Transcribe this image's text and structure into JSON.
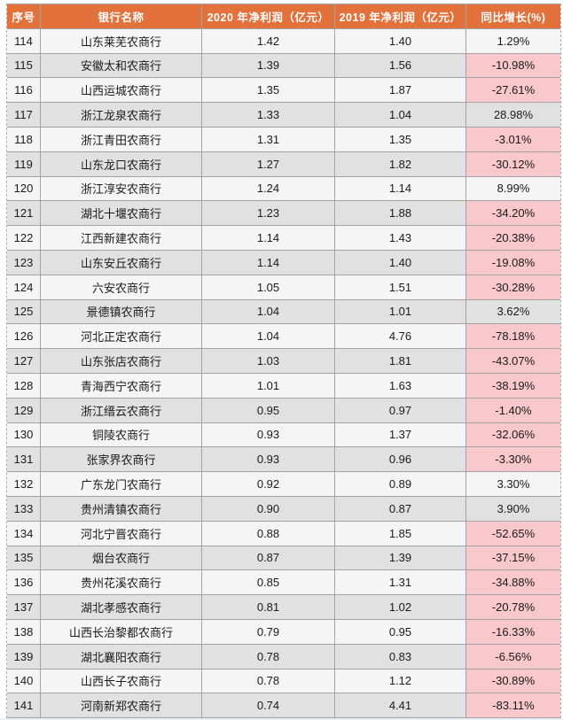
{
  "chart_data": {
    "type": "table",
    "columns": [
      "序号",
      "银行名称",
      "2020 年净利润（亿元）",
      "2019 年净利润（亿元）",
      "同比增长(%)"
    ],
    "rows": [
      {
        "index": "114",
        "name": "山东莱芜农商行",
        "profit_2020": "1.42",
        "profit_2019": "1.40",
        "growth": "1.29%",
        "negative": false
      },
      {
        "index": "115",
        "name": "安徽太和农商行",
        "profit_2020": "1.39",
        "profit_2019": "1.56",
        "growth": "-10.98%",
        "negative": true
      },
      {
        "index": "116",
        "name": "山西运城农商行",
        "profit_2020": "1.35",
        "profit_2019": "1.87",
        "growth": "-27.61%",
        "negative": true
      },
      {
        "index": "117",
        "name": "浙江龙泉农商行",
        "profit_2020": "1.33",
        "profit_2019": "1.04",
        "growth": "28.98%",
        "negative": false
      },
      {
        "index": "118",
        "name": "浙江青田农商行",
        "profit_2020": "1.31",
        "profit_2019": "1.35",
        "growth": "-3.01%",
        "negative": true
      },
      {
        "index": "119",
        "name": "山东龙口农商行",
        "profit_2020": "1.27",
        "profit_2019": "1.82",
        "growth": "-30.12%",
        "negative": true
      },
      {
        "index": "120",
        "name": "浙江淳安农商行",
        "profit_2020": "1.24",
        "profit_2019": "1.14",
        "growth": "8.99%",
        "negative": false
      },
      {
        "index": "121",
        "name": "湖北十堰农商行",
        "profit_2020": "1.23",
        "profit_2019": "1.88",
        "growth": "-34.20%",
        "negative": true
      },
      {
        "index": "122",
        "name": "江西新建农商行",
        "profit_2020": "1.14",
        "profit_2019": "1.43",
        "growth": "-20.38%",
        "negative": true
      },
      {
        "index": "123",
        "name": "山东安丘农商行",
        "profit_2020": "1.14",
        "profit_2019": "1.40",
        "growth": "-19.08%",
        "negative": true
      },
      {
        "index": "124",
        "name": "六安农商行",
        "profit_2020": "1.05",
        "profit_2019": "1.51",
        "growth": "-30.28%",
        "negative": true
      },
      {
        "index": "125",
        "name": "景德镇农商行",
        "profit_2020": "1.04",
        "profit_2019": "1.01",
        "growth": "3.62%",
        "negative": false
      },
      {
        "index": "126",
        "name": "河北正定农商行",
        "profit_2020": "1.04",
        "profit_2019": "4.76",
        "growth": "-78.18%",
        "negative": true
      },
      {
        "index": "127",
        "name": "山东张店农商行",
        "profit_2020": "1.03",
        "profit_2019": "1.81",
        "growth": "-43.07%",
        "negative": true
      },
      {
        "index": "128",
        "name": "青海西宁农商行",
        "profit_2020": "1.01",
        "profit_2019": "1.63",
        "growth": "-38.19%",
        "negative": true
      },
      {
        "index": "129",
        "name": "浙江缙云农商行",
        "profit_2020": "0.95",
        "profit_2019": "0.97",
        "growth": "-1.40%",
        "negative": true
      },
      {
        "index": "130",
        "name": "铜陵农商行",
        "profit_2020": "0.93",
        "profit_2019": "1.37",
        "growth": "-32.06%",
        "negative": true
      },
      {
        "index": "131",
        "name": "张家界农商行",
        "profit_2020": "0.93",
        "profit_2019": "0.96",
        "growth": "-3.30%",
        "negative": true
      },
      {
        "index": "132",
        "name": "广东龙门农商行",
        "profit_2020": "0.92",
        "profit_2019": "0.89",
        "growth": "3.30%",
        "negative": false
      },
      {
        "index": "133",
        "name": "贵州清镇农商行",
        "profit_2020": "0.90",
        "profit_2019": "0.87",
        "growth": "3.90%",
        "negative": false
      },
      {
        "index": "134",
        "name": "河北宁晋农商行",
        "profit_2020": "0.88",
        "profit_2019": "1.85",
        "growth": "-52.65%",
        "negative": true
      },
      {
        "index": "135",
        "name": "烟台农商行",
        "profit_2020": "0.87",
        "profit_2019": "1.39",
        "growth": "-37.15%",
        "negative": true
      },
      {
        "index": "136",
        "name": "贵州花溪农商行",
        "profit_2020": "0.85",
        "profit_2019": "1.31",
        "growth": "-34.88%",
        "negative": true
      },
      {
        "index": "137",
        "name": "湖北孝感农商行",
        "profit_2020": "0.81",
        "profit_2019": "1.02",
        "growth": "-20.78%",
        "negative": true
      },
      {
        "index": "138",
        "name": "山西长治黎都农商行",
        "profit_2020": "0.79",
        "profit_2019": "0.95",
        "growth": "-16.33%",
        "negative": true
      },
      {
        "index": "139",
        "name": "湖北襄阳农商行",
        "profit_2020": "0.78",
        "profit_2019": "0.83",
        "growth": "-6.56%",
        "negative": true
      },
      {
        "index": "140",
        "name": "山西长子农商行",
        "profit_2020": "0.78",
        "profit_2019": "1.12",
        "growth": "-30.89%",
        "negative": true
      },
      {
        "index": "141",
        "name": "河南新郑农商行",
        "profit_2020": "0.74",
        "profit_2019": "4.41",
        "growth": "-83.11%",
        "negative": true
      }
    ]
  },
  "colors": {
    "header_bg": "#E2713B",
    "header_text": "#FFFFFF",
    "row_light": "#F5F5F5",
    "row_dark": "#E1E1E1",
    "negative_bg": "#F8C8CC",
    "grid_line": "#A3A3A3",
    "body_text": "#1A1A1A"
  }
}
